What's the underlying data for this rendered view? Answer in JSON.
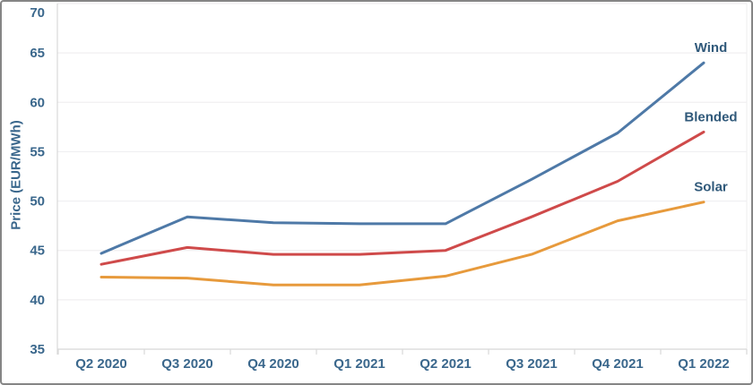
{
  "colors": {
    "axis_text": "#3a678c",
    "series_label_text": "#30597a",
    "grid": "#f0eff1",
    "axis_line": "#d8d8d8",
    "border": "#858585",
    "background": "#ffffff"
  },
  "chart_data": {
    "type": "line",
    "title": "",
    "xlabel": "",
    "ylabel": "Price (EUR/MWh)",
    "ylim": [
      35,
      70
    ],
    "yticks": [
      35,
      40,
      45,
      50,
      55,
      60,
      65,
      70
    ],
    "grid": true,
    "legend_position": "line-end-labels-right",
    "categories": [
      "Q2 2020",
      "Q3 2020",
      "Q4 2020",
      "Q1 2021",
      "Q2 2021",
      "Q3 2021",
      "Q4 2021",
      "Q1 2022"
    ],
    "series": [
      {
        "name": "Wind",
        "color": "#4e79a7",
        "values": [
          44.7,
          48.4,
          47.8,
          47.7,
          47.7,
          52.2,
          56.9,
          64.0
        ]
      },
      {
        "name": "Blended",
        "color": "#cf4a4a",
        "values": [
          43.6,
          45.3,
          44.6,
          44.6,
          45.0,
          48.4,
          52.0,
          57.0
        ]
      },
      {
        "name": "Solar",
        "color": "#e79a3c",
        "values": [
          42.3,
          42.2,
          41.5,
          41.5,
          42.4,
          44.6,
          48.0,
          49.9
        ]
      }
    ]
  }
}
